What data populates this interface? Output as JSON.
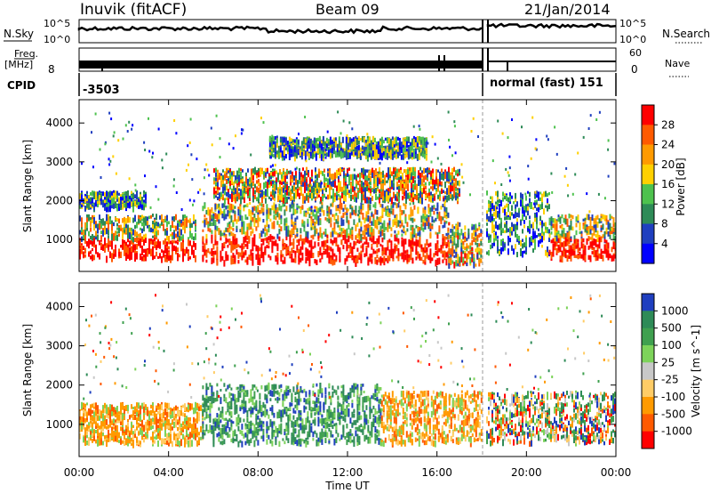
{
  "header": {
    "station": "Inuvik (fitACF)",
    "beam": "Beam 09",
    "date": "21/Jan/2014"
  },
  "summary_panels": {
    "nsky": {
      "label": "N.Sky",
      "top_tick": "10^5",
      "bottom_tick": "10^0"
    },
    "nsearch": {
      "label": "N.Search",
      "top_tick": "10^5",
      "bottom_tick": "10^0"
    },
    "freq": {
      "label_line1": "Freq.",
      "label_line2": "[MHz]",
      "top_tick": "",
      "bottom_tick": "8"
    },
    "nave": {
      "label": "Nave",
      "top_tick": "60",
      "bottom_tick": "0"
    },
    "cpid": {
      "label": "CPID",
      "segments": [
        {
          "text": "-3503",
          "start_hour": 0.0
        },
        {
          "text": "normal (fast) 151",
          "start_hour": 18.05
        }
      ]
    }
  },
  "x_axis": {
    "label": "Time UT",
    "tick_labels": [
      "00:00",
      "04:00",
      "08:00",
      "12:00",
      "16:00",
      "20:00",
      "00:00"
    ],
    "tick_hours": [
      0,
      4,
      8,
      12,
      16,
      20,
      24
    ]
  },
  "chart_data": [
    {
      "type": "heatmap",
      "title": "Power",
      "ylabel": "Slant Range [km]",
      "xlabel": "",
      "x_range_hours": [
        0,
        24
      ],
      "ylim": [
        180,
        4600
      ],
      "y_ticks": [
        1000,
        2000,
        3000,
        4000
      ],
      "colorbar": {
        "label": "Power [dB]",
        "ticks": [
          "28",
          "24",
          "20",
          "16",
          "12",
          "8",
          "4"
        ],
        "colors": [
          "#ff0000",
          "#ff5a00",
          "#ff9a00",
          "#ffd000",
          "#4ec24e",
          "#2e8b57",
          "#1f3fbf",
          "#0000ff"
        ]
      },
      "data_gap_hour": 18.0,
      "echo_bands": [
        {
          "t_start": 0.0,
          "t_end": 5.2,
          "range_low": 500,
          "range_high": 1600,
          "level": "high"
        },
        {
          "t_start": 5.5,
          "t_end": 16.5,
          "range_low": 400,
          "range_high": 1900,
          "level": "high"
        },
        {
          "t_start": 16.5,
          "t_end": 18.0,
          "range_low": 300,
          "range_high": 1400,
          "level": "medium"
        },
        {
          "t_start": 18.2,
          "t_end": 21.0,
          "range_low": 600,
          "range_high": 2200,
          "level": "low"
        },
        {
          "t_start": 21.0,
          "t_end": 24.0,
          "range_low": 500,
          "range_high": 1600,
          "level": "high"
        },
        {
          "t_start": 0.0,
          "t_end": 3.0,
          "range_low": 1800,
          "range_high": 2200,
          "level": "low"
        },
        {
          "t_start": 6.0,
          "t_end": 17.0,
          "range_low": 2000,
          "range_high": 2800,
          "level": "medium"
        },
        {
          "t_start": 8.5,
          "t_end": 15.5,
          "range_low": 3100,
          "range_high": 3600,
          "level": "low"
        }
      ]
    },
    {
      "type": "heatmap",
      "title": "Velocity",
      "ylabel": "Slant Range [km]",
      "xlabel": "Time UT",
      "x_range_hours": [
        0,
        24
      ],
      "ylim": [
        180,
        4600
      ],
      "y_ticks": [
        1000,
        2000,
        3000,
        4000
      ],
      "colorbar": {
        "label": "Velocity [m s^-1]",
        "ticks": [
          "1000",
          "500",
          "100",
          "25",
          "-25",
          "-100",
          "-500",
          "-1000"
        ],
        "colors": [
          "#1f3fbf",
          "#2e8b57",
          "#3fa04f",
          "#7dd35a",
          "#c8c8c8",
          "#ffcc66",
          "#ff9a00",
          "#ff5a00",
          "#ff0000"
        ]
      },
      "data_gap_hour": 18.0,
      "echo_bands": [
        {
          "t_start": 0.0,
          "t_end": 5.5,
          "range_low": 500,
          "range_high": 1500,
          "level": "negative"
        },
        {
          "t_start": 5.5,
          "t_end": 13.5,
          "range_low": 500,
          "range_high": 2000,
          "level": "positive"
        },
        {
          "t_start": 13.5,
          "t_end": 18.0,
          "range_low": 500,
          "range_high": 1800,
          "level": "negative"
        },
        {
          "t_start": 18.2,
          "t_end": 24.0,
          "range_low": 500,
          "range_high": 1800,
          "level": "mixed"
        }
      ]
    }
  ]
}
